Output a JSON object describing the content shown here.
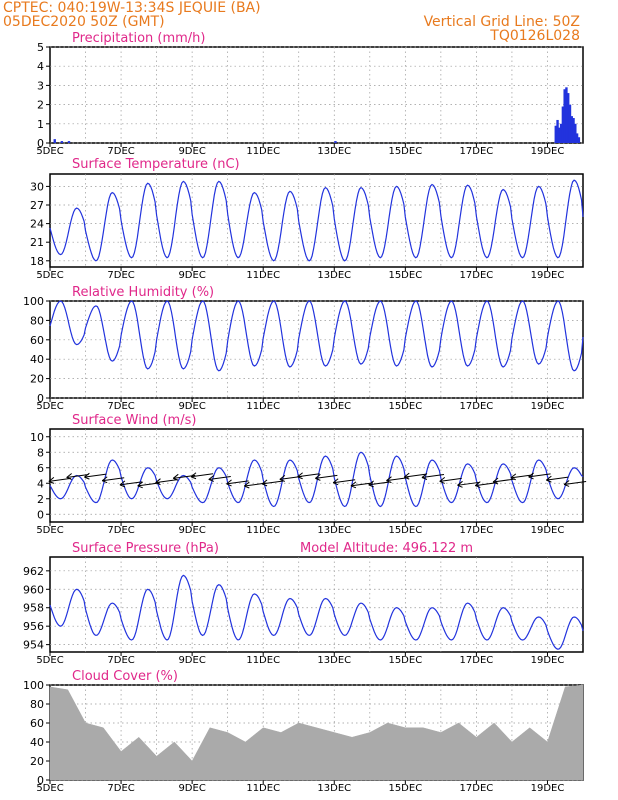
{
  "header": {
    "line1_left": "CPTEC:   040:19W-13:34S   JEQUIE (BA)",
    "line2_left": "05DEC2020 50Z (GMT)",
    "line1_right": "Vertical Grid Line: 50Z",
    "line2_right": "TQ0126L028",
    "color": "#e87a1e"
  },
  "colors": {
    "title": "#e0288a",
    "line": "#2233dd",
    "bar_precip": "#2233dd",
    "bar_cloud": "#aaaaaa",
    "grid": "#999999",
    "vector": "#000000"
  },
  "date_labels": [
    "5DEC",
    "7DEC",
    "9DEC",
    "11DEC",
    "13DEC",
    "15DEC",
    "17DEC",
    "19DEC"
  ],
  "chart_data": [
    {
      "type": "bar",
      "title": "Precipitation (mm/h)",
      "ylim": [
        0,
        5
      ],
      "yticks": [
        0,
        1,
        2,
        3,
        4,
        5
      ],
      "x_days": [
        0.1,
        0.3,
        0.5,
        8.0,
        14.2,
        14.2,
        14.25,
        14.3,
        14.35,
        14.4,
        14.45,
        14.5,
        14.55,
        14.6,
        14.65,
        14.7,
        14.75,
        14.8,
        14.85
      ],
      "values": [
        0.2,
        0.1,
        0.1,
        0.1,
        0.1,
        0.9,
        1.2,
        0.8,
        1.0,
        1.9,
        2.8,
        2.9,
        2.6,
        2.0,
        1.4,
        1.3,
        1.0,
        0.5,
        0.3
      ]
    },
    {
      "type": "line",
      "title": "Surface Temperature (nC)",
      "ylim": [
        17,
        32
      ],
      "yticks": [
        18,
        21,
        24,
        27,
        30
      ],
      "day_max": [
        26.5,
        29,
        30.5,
        30.8,
        30.8,
        29,
        29.2,
        29.8,
        29.8,
        30,
        30.3,
        30.2,
        29.5,
        30,
        31,
        26
      ],
      "day_min": [
        19,
        18,
        18.5,
        18.5,
        18.5,
        18.5,
        18,
        18,
        18,
        18.5,
        18.5,
        18.5,
        18.5,
        18.5,
        18.5,
        22
      ]
    },
    {
      "type": "line",
      "title": "Relative Humidity (%)",
      "ylim": [
        0,
        100
      ],
      "yticks": [
        0,
        20,
        40,
        60,
        80,
        100
      ],
      "day_min": [
        55,
        38,
        30,
        30,
        28,
        33,
        32,
        33,
        35,
        33,
        32,
        33,
        32,
        35,
        28,
        70
      ],
      "day_max": [
        100,
        95,
        100,
        100,
        100,
        100,
        100,
        100,
        100,
        100,
        100,
        100,
        100,
        100,
        100,
        90
      ]
    },
    {
      "type": "line",
      "title": "Surface Wind (m/s)",
      "ylim": [
        -1,
        11
      ],
      "yticks": [
        0,
        2,
        4,
        6,
        8,
        10
      ],
      "day_min": [
        2,
        1.5,
        2,
        2,
        1.5,
        1.5,
        1,
        1.5,
        1,
        1,
        1,
        1.5,
        1.5,
        1.5,
        2,
        2
      ],
      "day_max": [
        5,
        7,
        6,
        5,
        6,
        7,
        7,
        7.5,
        8,
        7.5,
        7,
        6.5,
        6.5,
        7,
        6,
        6
      ]
    },
    {
      "type": "line",
      "title": "Surface Pressure (hPa)",
      "subtitle": "Model Altitude: 496.122 m",
      "ylim": [
        953.2,
        963.5
      ],
      "yticks": [
        954,
        956,
        958,
        960,
        962
      ],
      "day_max": [
        960,
        958.5,
        960,
        961.5,
        960.5,
        959.5,
        959,
        959,
        958.5,
        958,
        958,
        958.5,
        958,
        957,
        957,
        956
      ],
      "day_min": [
        956,
        955,
        954.5,
        954.5,
        955,
        954.5,
        955,
        955,
        955,
        954.5,
        954.5,
        954.5,
        954.5,
        954.5,
        953.5,
        953.5
      ]
    },
    {
      "type": "bar",
      "title": "Cloud Cover (%)",
      "ylim": [
        0,
        100
      ],
      "yticks": [
        0,
        20,
        40,
        60,
        80,
        100
      ],
      "x_days": [
        0,
        0.5,
        1,
        1.5,
        2,
        2.5,
        3,
        3.5,
        4,
        4.5,
        5,
        5.5,
        6,
        6.5,
        7,
        7.5,
        8,
        8.5,
        9,
        9.5,
        10,
        10.5,
        11,
        11.5,
        12,
        12.5,
        13,
        13.5,
        14,
        14.5,
        15
      ],
      "values": [
        98,
        95,
        60,
        55,
        30,
        45,
        25,
        40,
        20,
        55,
        50,
        40,
        55,
        50,
        60,
        55,
        50,
        45,
        50,
        60,
        55,
        55,
        50,
        60,
        45,
        60,
        40,
        55,
        40,
        98,
        100
      ]
    }
  ]
}
